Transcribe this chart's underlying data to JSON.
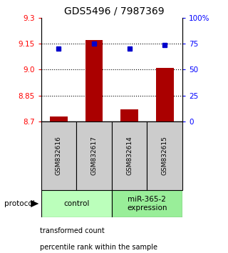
{
  "title": "GDS5496 / 7987369",
  "samples": [
    "GSM832616",
    "GSM832617",
    "GSM832614",
    "GSM832615"
  ],
  "bar_values": [
    8.73,
    9.17,
    8.77,
    9.01
  ],
  "bar_base": 8.7,
  "percentile_values": [
    70,
    75,
    70,
    74
  ],
  "ylim_left": [
    8.7,
    9.3
  ],
  "ylim_right": [
    0,
    100
  ],
  "yticks_left": [
    8.7,
    8.85,
    9.0,
    9.15,
    9.3
  ],
  "yticks_right": [
    0,
    25,
    50,
    75,
    100
  ],
  "ytick_labels_right": [
    "0",
    "25",
    "50",
    "75",
    "100%"
  ],
  "hlines": [
    8.85,
    9.0,
    9.15
  ],
  "bar_color": "#aa0000",
  "dot_color": "#0000cc",
  "groups": [
    {
      "label": "control",
      "samples": [
        0,
        1
      ],
      "color": "#bbffbb"
    },
    {
      "label": "miR-365-2\nexpression",
      "samples": [
        2,
        3
      ],
      "color": "#99ee99"
    }
  ],
  "protocol_label": "protocol",
  "legend_items": [
    {
      "color": "#cc2200",
      "label": "transformed count"
    },
    {
      "color": "#0000cc",
      "label": "percentile rank within the sample"
    }
  ],
  "sample_box_color": "#cccccc",
  "bar_width": 0.5,
  "title_fontsize": 10,
  "tick_fontsize": 7.5
}
